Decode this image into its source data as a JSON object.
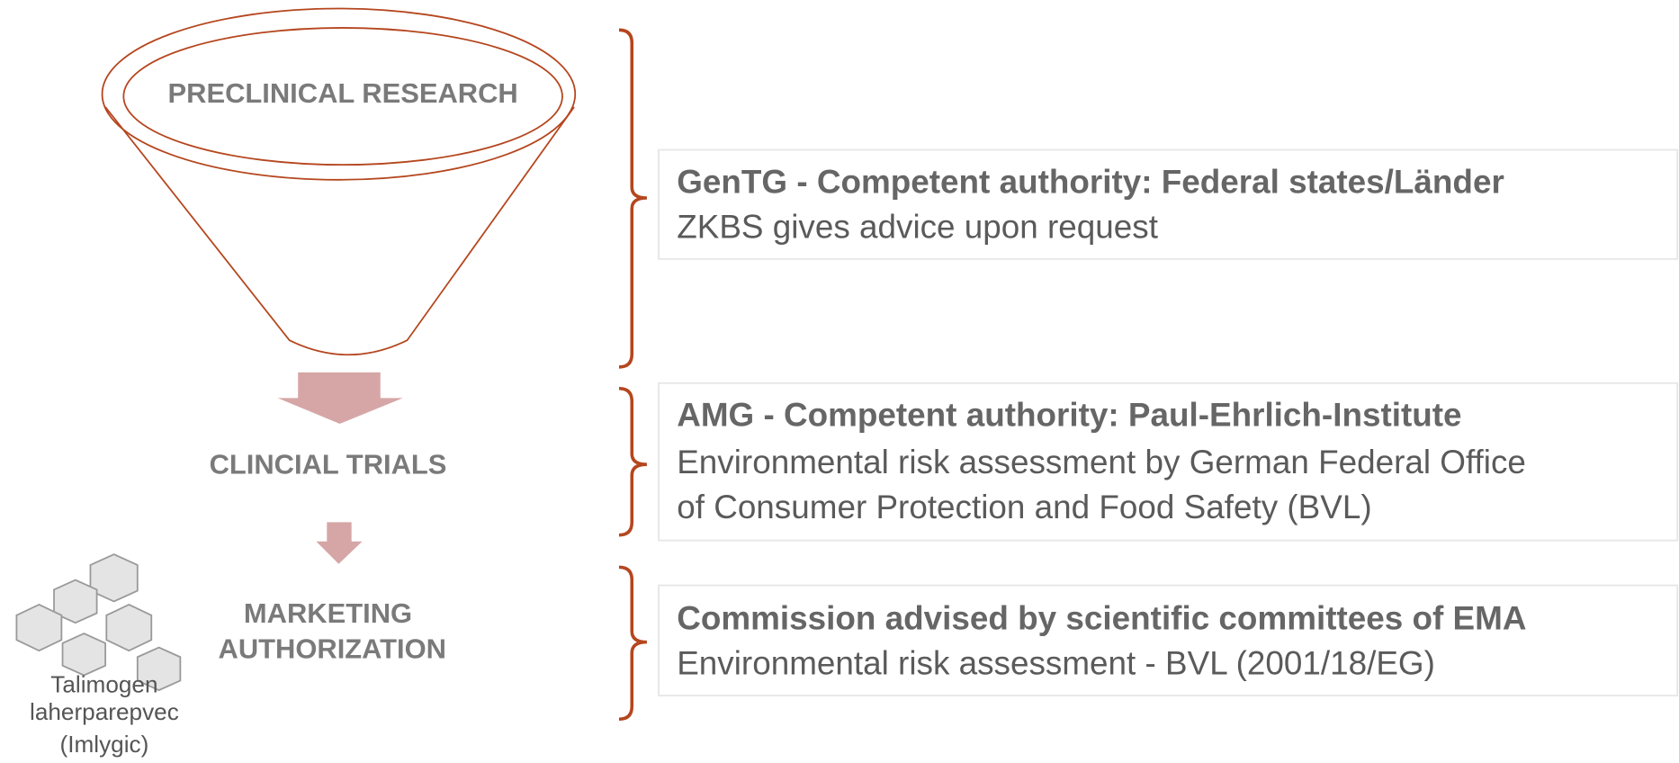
{
  "funnel": {
    "top_stage": "PRECLINICAL RESEARCH",
    "middle_stage": "CLINCIAL TRIALS",
    "bottom_stage": [
      "MARKETING",
      "AUTHORIZATION"
    ]
  },
  "product": [
    "Talimogen",
    "laherparepvec",
    "(Imlygic)"
  ],
  "boxes": [
    {
      "title": "GenTG - Competent authority: Federal states/Länder",
      "lines": [
        "ZKBS gives advice upon request"
      ]
    },
    {
      "title": "AMG - Competent authority: Paul-Ehrlich-Institute",
      "lines": [
        "Environmental risk assessment by German Federal Office",
        "of Consumer Protection and Food Safety (BVL)"
      ]
    },
    {
      "title": "Commission advised by scientific committees of EMA",
      "lines": [
        "Environmental risk assessment - BVL (2001/18/EG)"
      ]
    }
  ]
}
